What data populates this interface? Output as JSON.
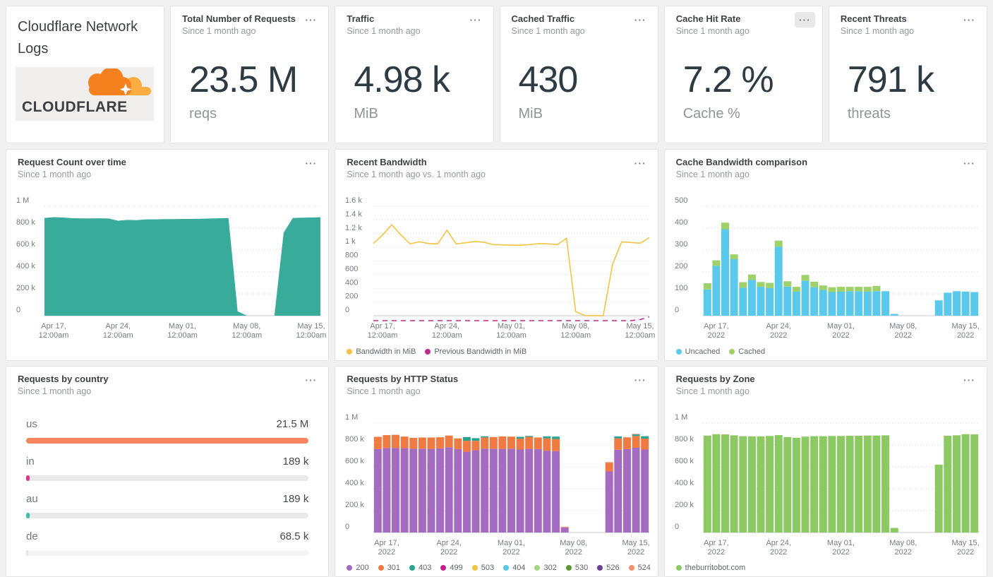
{
  "ui": {
    "menu_glyph": "···"
  },
  "brand": {
    "title": "Cloudflare Network Logs",
    "logo_text": "CLOUDFLARE"
  },
  "stats": [
    {
      "title": "Total Number of Requests",
      "subtitle": "Since 1 month ago",
      "value": "23.5 M",
      "unit": "reqs"
    },
    {
      "title": "Traffic",
      "subtitle": "Since 1 month ago",
      "value": "4.98 k",
      "unit": "MiB"
    },
    {
      "title": "Cached Traffic",
      "subtitle": "Since 1 month ago",
      "value": "430",
      "unit": "MiB"
    },
    {
      "title": "Cache Hit Rate",
      "subtitle": "Since 1 month ago",
      "value": "7.2 %",
      "unit": "Cache %"
    },
    {
      "title": "Recent Threats",
      "subtitle": "Since 1 month ago",
      "value": "791 k",
      "unit": "threats"
    }
  ],
  "chart_data": [
    {
      "type": "area",
      "title": "Request Count over time",
      "subtitle": "Since 1 month ago",
      "color": "#39ab9a",
      "ymax": 1000,
      "unit": "requests (thousands)",
      "y_ticks": [
        {
          "label": "1 M",
          "v": 1000
        },
        {
          "label": "800 k",
          "v": 800
        },
        {
          "label": "600 k",
          "v": 600
        },
        {
          "label": "400 k",
          "v": 400
        },
        {
          "label": "200 k",
          "v": 200
        },
        {
          "label": "0",
          "v": 0
        }
      ],
      "x_ticks": [
        {
          "idx": 1,
          "l1": "Apr 17,",
          "l2": "12:00am"
        },
        {
          "idx": 8,
          "l1": "Apr 24,",
          "l2": "12:00am"
        },
        {
          "idx": 15,
          "l1": "May 01,",
          "l2": "12:00am"
        },
        {
          "idx": 22,
          "l1": "May 08,",
          "l2": "12:00am"
        },
        {
          "idx": 29,
          "l1": "May 15,",
          "l2": "12:00am"
        }
      ],
      "values": [
        893,
        900,
        897,
        891,
        889,
        889,
        890,
        888,
        868,
        875,
        872,
        880,
        880,
        882,
        882,
        884,
        884,
        886,
        888,
        890,
        892,
        40,
        0,
        0,
        0,
        0,
        758,
        893,
        895,
        897,
        900
      ]
    },
    {
      "type": "line",
      "title": "Recent Bandwidth",
      "subtitle": "Since 1 month ago vs. 1 month ago",
      "ymax": 1600,
      "unit": "MiB",
      "y_ticks": [
        {
          "label": "1.6 k",
          "v": 1600
        },
        {
          "label": "1.4 k",
          "v": 1400
        },
        {
          "label": "1.2 k",
          "v": 1200
        },
        {
          "label": "1 k",
          "v": 1000
        },
        {
          "label": "800",
          "v": 800
        },
        {
          "label": "600",
          "v": 600
        },
        {
          "label": "400",
          "v": 400
        },
        {
          "label": "200",
          "v": 200
        },
        {
          "label": "0",
          "v": 0
        }
      ],
      "x_ticks": [
        {
          "idx": 1,
          "l1": "Apr 17,",
          "l2": "12:00am"
        },
        {
          "idx": 8,
          "l1": "Apr 24,",
          "l2": "12:00am"
        },
        {
          "idx": 15,
          "l1": "May 01,",
          "l2": "12:00am"
        },
        {
          "idx": 22,
          "l1": "May 08,",
          "l2": "12:00am"
        },
        {
          "idx": 29,
          "l1": "May 15,",
          "l2": "12:00am"
        }
      ],
      "series": [
        {
          "name": "Bandwidth in MiB",
          "color": "#f5c344",
          "dash": false,
          "values": [
            1055,
            1180,
            1330,
            1180,
            1050,
            1080,
            1055,
            1050,
            1250,
            1050,
            1065,
            1085,
            1075,
            1040,
            1035,
            1030,
            1030,
            1040,
            1055,
            1050,
            1040,
            1130,
            60,
            0,
            0,
            0,
            750,
            1080,
            1070,
            1060,
            1140
          ]
        },
        {
          "name": "Previous Bandwidth in MiB",
          "color": "#c02a8c",
          "dash": true,
          "values": [
            0,
            0,
            0,
            0,
            0,
            0,
            0,
            0,
            0,
            0,
            0,
            0,
            0,
            0,
            0,
            0,
            0,
            0,
            0,
            0,
            0,
            0,
            0,
            0,
            0,
            0,
            0,
            0,
            0,
            15,
            55
          ]
        }
      ],
      "legend": [
        {
          "label": "Bandwidth in MiB",
          "color": "#f5c344"
        },
        {
          "label": "Previous Bandwidth in MiB",
          "color": "#c02a8c"
        }
      ]
    },
    {
      "type": "bar-stacked",
      "title": "Cache Bandwidth comparison",
      "subtitle": "Since 1 month ago",
      "ymax": 500,
      "unit": "MiB",
      "y_ticks": [
        {
          "label": "500",
          "v": 500
        },
        {
          "label": "400",
          "v": 400
        },
        {
          "label": "300",
          "v": 300
        },
        {
          "label": "200",
          "v": 200
        },
        {
          "label": "100",
          "v": 100
        },
        {
          "label": "0",
          "v": 0
        }
      ],
      "x_ticks": [
        {
          "idx": 1,
          "l1": "Apr 17,",
          "l2": "2022"
        },
        {
          "idx": 8,
          "l1": "Apr 24,",
          "l2": "2022"
        },
        {
          "idx": 15,
          "l1": "May 01,",
          "l2": "2022"
        },
        {
          "idx": 22,
          "l1": "May 08,",
          "l2": "2022"
        },
        {
          "idx": 29,
          "l1": "May 15,",
          "l2": "2022"
        }
      ],
      "series": [
        {
          "name": "Uncached",
          "color": "#5bc9ec",
          "values": [
            120,
            228,
            395,
            258,
            128,
            163,
            132,
            126,
            315,
            133,
            110,
            160,
            130,
            118,
            108,
            110,
            112,
            112,
            110,
            112,
            112,
            8,
            0,
            0,
            0,
            0,
            70,
            105,
            112,
            110,
            108
          ]
        },
        {
          "name": "Cached",
          "color": "#9ed168",
          "values": [
            28,
            25,
            30,
            22,
            25,
            25,
            22,
            24,
            28,
            24,
            22,
            26,
            25,
            20,
            22,
            22,
            20,
            20,
            22,
            24,
            0,
            0,
            0,
            0,
            0,
            0,
            0,
            0,
            0,
            0,
            0
          ]
        }
      ],
      "legend": [
        {
          "label": "Uncached",
          "color": "#5bc9ec"
        },
        {
          "label": "Cached",
          "color": "#9ed168"
        }
      ]
    },
    {
      "type": "hbar",
      "title": "Requests by country",
      "subtitle": "Since 1 month ago",
      "rows": [
        {
          "label": "us",
          "value": "21.5 M",
          "pct": 100,
          "color": "#f5855f",
          "track": "#e9e9e9"
        },
        {
          "label": "in",
          "value": "189 k",
          "pct": 1.3,
          "color": "#e0368c",
          "track": "#e9e9e9"
        },
        {
          "label": "au",
          "value": "189 k",
          "pct": 1.3,
          "color": "#41bfae",
          "track": "#e9e9e9"
        },
        {
          "label": "de",
          "value": "68.5 k",
          "pct": 0.6,
          "color": "#d8ebe7",
          "track": "#f4f4f4"
        }
      ]
    },
    {
      "type": "bar-stacked",
      "title": "Requests by HTTP Status",
      "subtitle": "Since 1 month ago",
      "ymax": 1000,
      "unit": "requests (thousands)",
      "y_ticks": [
        {
          "label": "1 M",
          "v": 1000
        },
        {
          "label": "800 k",
          "v": 800
        },
        {
          "label": "600 k",
          "v": 600
        },
        {
          "label": "400 k",
          "v": 400
        },
        {
          "label": "200 k",
          "v": 200
        },
        {
          "label": "0",
          "v": 0
        }
      ],
      "x_ticks": [
        {
          "idx": 1,
          "l1": "Apr 17,",
          "l2": "2022"
        },
        {
          "idx": 8,
          "l1": "Apr 24,",
          "l2": "2022"
        },
        {
          "idx": 15,
          "l1": "May 01,",
          "l2": "2022"
        },
        {
          "idx": 22,
          "l1": "May 08,",
          "l2": "2022"
        },
        {
          "idx": 29,
          "l1": "May 15,",
          "l2": "2022"
        }
      ],
      "series": [
        {
          "name": "200",
          "color": "#a46cc0",
          "values": [
            762,
            772,
            772,
            770,
            765,
            766,
            764,
            768,
            778,
            762,
            738,
            752,
            765,
            764,
            764,
            766,
            758,
            764,
            762,
            748,
            744,
            46,
            0,
            0,
            0,
            0,
            558,
            756,
            762,
            774,
            758
          ]
        },
        {
          "name": "301",
          "color": "#ef7a42",
          "values": [
            112,
            118,
            120,
            106,
            100,
            102,
            104,
            102,
            108,
            98,
            100,
            86,
            104,
            108,
            114,
            110,
            100,
            110,
            106,
            112,
            110,
            0,
            0,
            0,
            0,
            0,
            78,
            104,
            108,
            108,
            100
          ]
        },
        {
          "name": "403",
          "color": "#2aa28e",
          "values": [
            0,
            0,
            0,
            0,
            0,
            0,
            0,
            0,
            0,
            0,
            34,
            24,
            10,
            0,
            0,
            0,
            16,
            8,
            0,
            18,
            22,
            0,
            0,
            0,
            0,
            0,
            0,
            18,
            0,
            14,
            22
          ]
        },
        {
          "name": "524",
          "color": "#f4906c",
          "values": [
            0,
            0,
            0,
            0,
            0,
            0,
            0,
            0,
            0,
            0,
            0,
            0,
            0,
            0,
            0,
            0,
            0,
            0,
            0,
            0,
            0,
            7,
            0,
            0,
            0,
            0,
            7,
            0,
            0,
            5,
            0
          ]
        }
      ],
      "legend": [
        {
          "label": "200",
          "color": "#a46cc0"
        },
        {
          "label": "301",
          "color": "#ef7a42"
        },
        {
          "label": "403",
          "color": "#2aa28e"
        },
        {
          "label": "499",
          "color": "#c21f8f"
        },
        {
          "label": "503",
          "color": "#f5c344"
        },
        {
          "label": "404",
          "color": "#57c7e8"
        },
        {
          "label": "302",
          "color": "#a3d581"
        },
        {
          "label": "530",
          "color": "#5d9632"
        },
        {
          "label": "526",
          "color": "#6c3e98"
        },
        {
          "label": "524",
          "color": "#f4906c"
        }
      ]
    },
    {
      "type": "bar-stacked",
      "title": "Requests by Zone",
      "subtitle": "Since 1 month ago",
      "ymax": 1000,
      "unit": "requests (thousands)",
      "y_ticks": [
        {
          "label": "1 M",
          "v": 1000
        },
        {
          "label": "800 k",
          "v": 800
        },
        {
          "label": "600 k",
          "v": 600
        },
        {
          "label": "400 k",
          "v": 400
        },
        {
          "label": "200 k",
          "v": 200
        },
        {
          "label": "0",
          "v": 0
        }
      ],
      "x_ticks": [
        {
          "idx": 1,
          "l1": "Apr 17,",
          "l2": "2022"
        },
        {
          "idx": 8,
          "l1": "Apr 24,",
          "l2": "2022"
        },
        {
          "idx": 15,
          "l1": "May 01,",
          "l2": "2022"
        },
        {
          "idx": 22,
          "l1": "May 08,",
          "l2": "2022"
        },
        {
          "idx": 29,
          "l1": "May 15,",
          "l2": "2022"
        }
      ],
      "series": [
        {
          "name": "theburritobot.com",
          "color": "#8cc963",
          "values": [
            885,
            898,
            896,
            888,
            880,
            878,
            878,
            882,
            890,
            872,
            866,
            876,
            880,
            880,
            882,
            882,
            884,
            884,
            886,
            886,
            888,
            42,
            0,
            0,
            0,
            0,
            620,
            884,
            888,
            898,
            896
          ]
        }
      ],
      "legend": [
        {
          "label": "theburritobot.com",
          "color": "#8cc963"
        }
      ]
    }
  ]
}
